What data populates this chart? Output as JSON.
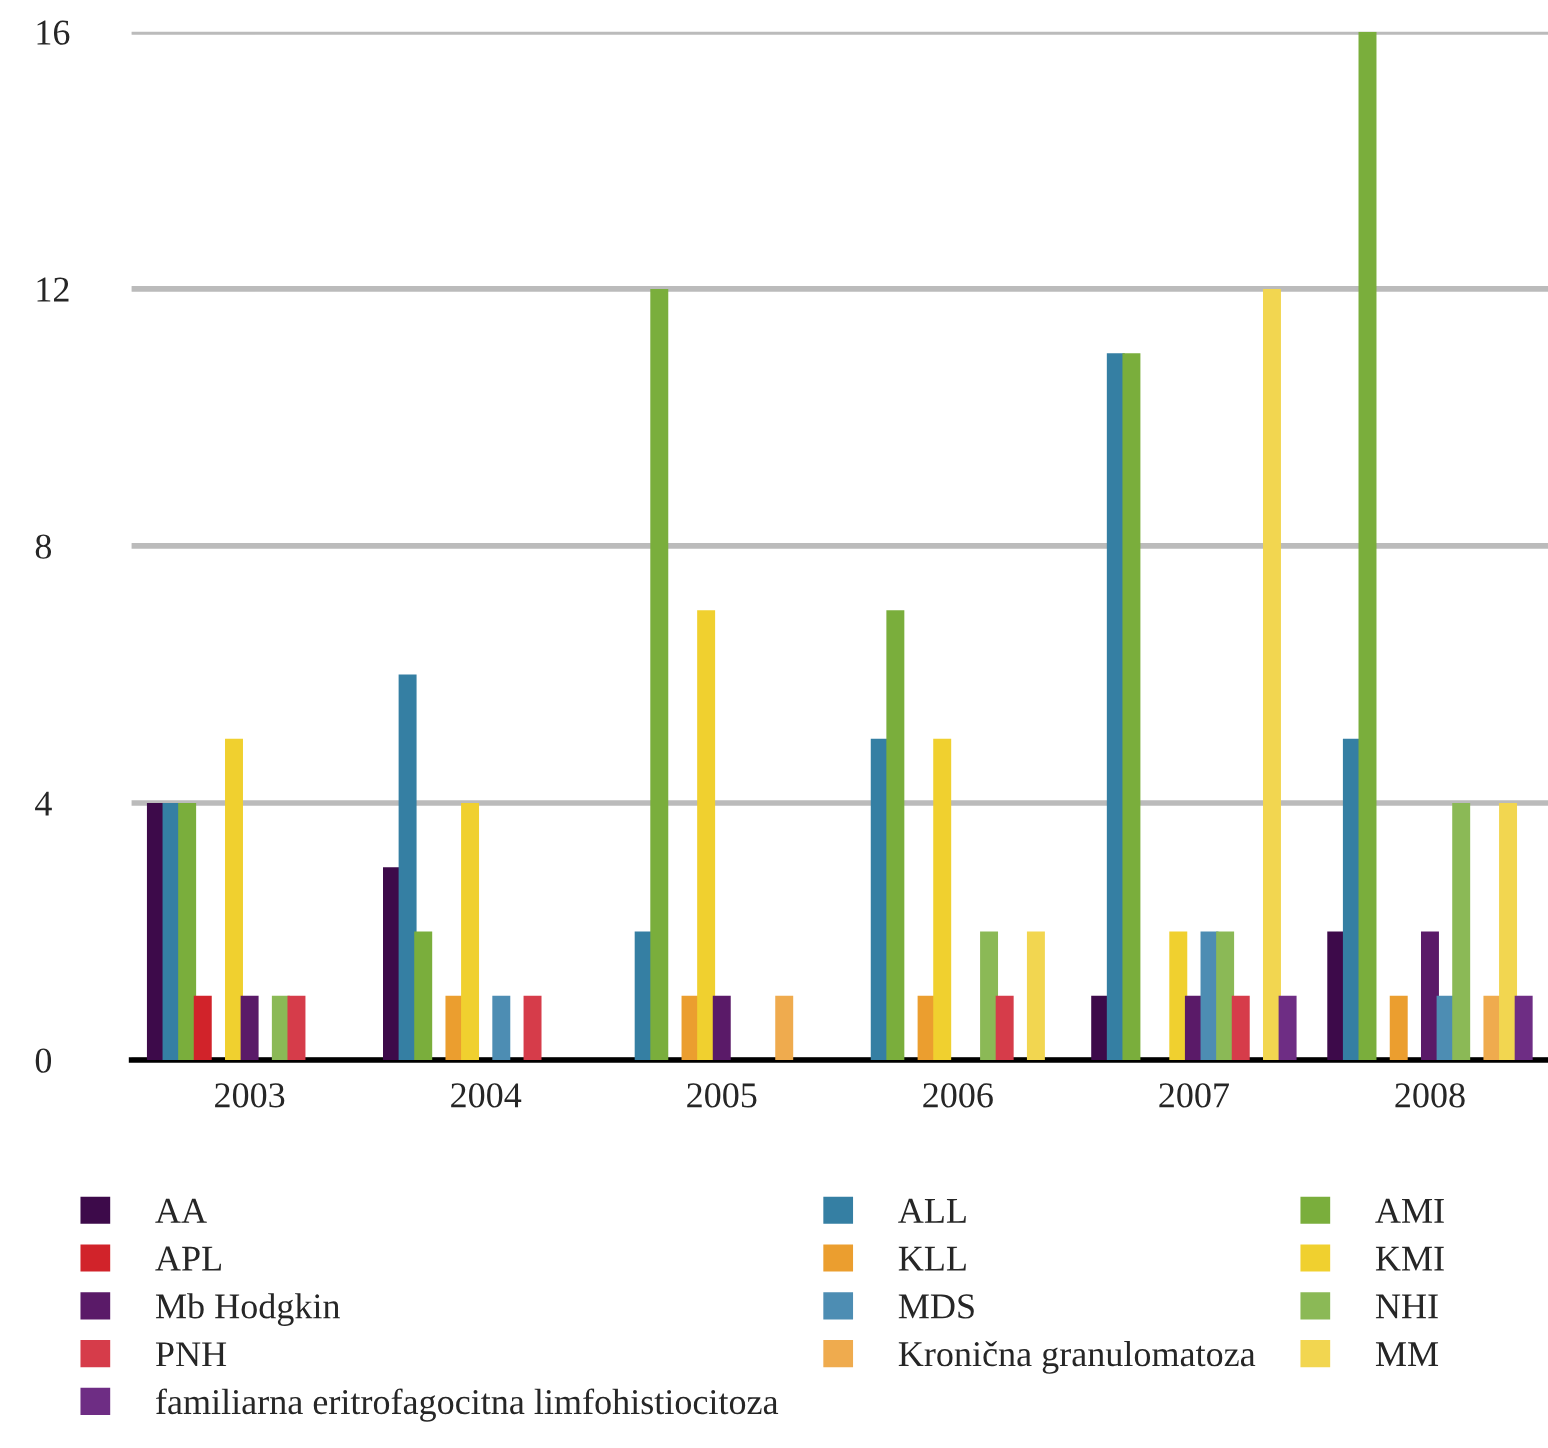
{
  "chart_data": {
    "type": "bar",
    "categories": [
      "2003",
      "2004",
      "2005",
      "2006",
      "2007",
      "2008"
    ],
    "series": [
      {
        "name": "AA",
        "color": "#3d0a4a",
        "values": [
          4,
          3,
          0,
          0,
          1,
          2
        ]
      },
      {
        "name": "ALL",
        "color": "#357fa3",
        "values": [
          4,
          6,
          2,
          5,
          11,
          5
        ]
      },
      {
        "name": "AMI",
        "color": "#7aae3c",
        "values": [
          4,
          2,
          12,
          7,
          11,
          16
        ]
      },
      {
        "name": "APL",
        "color": "#d1232a",
        "values": [
          1,
          0,
          0,
          0,
          0,
          0
        ]
      },
      {
        "name": "KLL",
        "color": "#eb9e2f",
        "values": [
          0,
          1,
          1,
          1,
          0,
          1
        ]
      },
      {
        "name": "KMI",
        "color": "#f0d02f",
        "values": [
          5,
          4,
          7,
          5,
          2,
          0
        ]
      },
      {
        "name": "Mb Hodgkin",
        "color": "#5a1a68",
        "values": [
          1,
          0,
          1,
          0,
          1,
          2
        ]
      },
      {
        "name": "MDS",
        "color": "#4d8db3",
        "values": [
          0,
          1,
          0,
          0,
          2,
          1
        ]
      },
      {
        "name": "NHI",
        "color": "#8bb956",
        "values": [
          1,
          0,
          0,
          2,
          2,
          4
        ]
      },
      {
        "name": "PNH",
        "color": "#d63c4a",
        "values": [
          1,
          1,
          0,
          1,
          1,
          0
        ]
      },
      {
        "name": "Kronična granulomatoza",
        "color": "#efab4e",
        "values": [
          0,
          0,
          1,
          0,
          0,
          1
        ]
      },
      {
        "name": "MM",
        "color": "#f2d650",
        "values": [
          0,
          0,
          0,
          2,
          12,
          4
        ]
      },
      {
        "name": "familiarna eritrofagocitna limfohistiocitoza",
        "color": "#6e2d84",
        "values": [
          0,
          0,
          0,
          0,
          1,
          1
        ]
      }
    ],
    "ylim": [
      0,
      16
    ],
    "yticks": [
      0,
      4,
      8,
      12,
      16
    ],
    "grid": "y",
    "legend": "bottom"
  }
}
